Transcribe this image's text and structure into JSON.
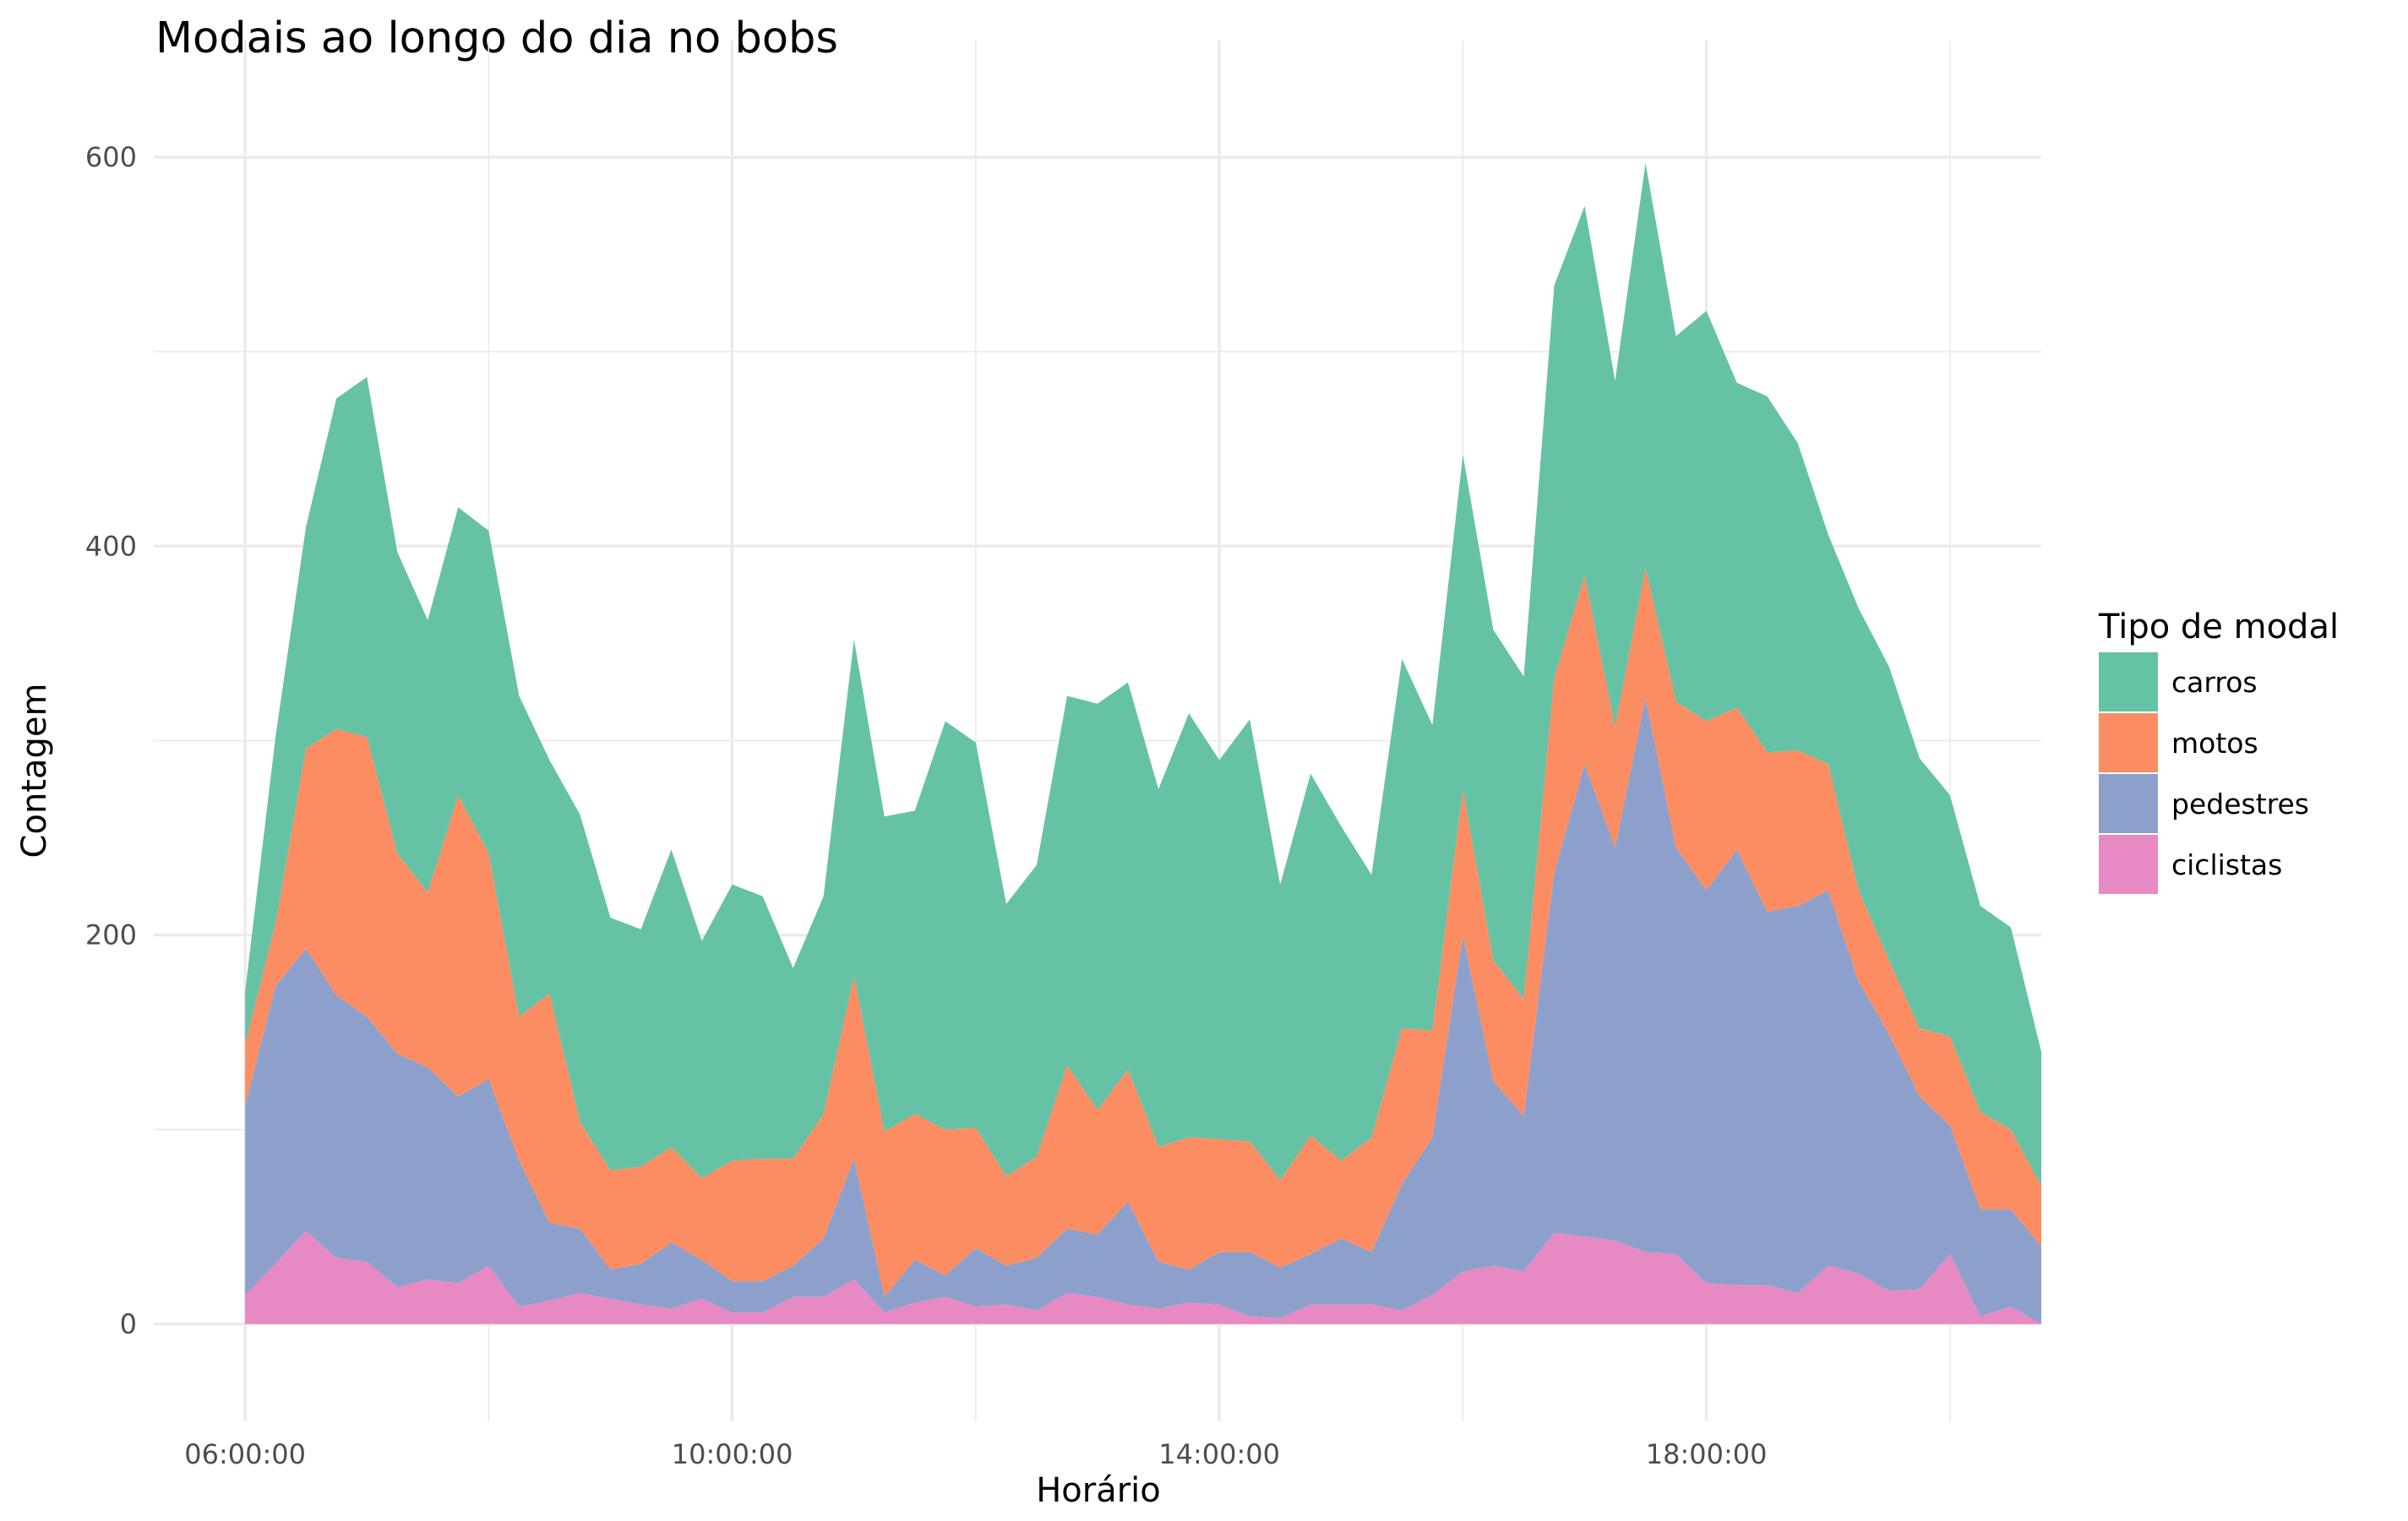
{
  "chart_data": {
    "type": "area",
    "stacked": true,
    "title": "Modais ao longo do dia no bobs",
    "xlabel": "Horário",
    "ylabel": "Contagem",
    "ylim": [
      -50,
      660
    ],
    "yticks": [
      0,
      200,
      400,
      600
    ],
    "xlim": [
      "05:15:00",
      "20:45:00"
    ],
    "xticks": [
      "06:00:00",
      "10:00:00",
      "14:00:00",
      "18:00:00"
    ],
    "grid": true,
    "legend": {
      "title": "Tipo de modal",
      "position": "right"
    },
    "x": [
      "06:00:00",
      "06:15:00",
      "06:30:00",
      "06:45:00",
      "07:00:00",
      "07:15:00",
      "07:30:00",
      "07:45:00",
      "08:00:00",
      "08:15:00",
      "08:30:00",
      "08:45:00",
      "09:00:00",
      "09:15:00",
      "09:30:00",
      "09:45:00",
      "10:00:00",
      "10:15:00",
      "10:30:00",
      "10:45:00",
      "11:00:00",
      "11:15:00",
      "11:30:00",
      "11:45:00",
      "12:00:00",
      "12:15:00",
      "12:30:00",
      "12:45:00",
      "13:00:00",
      "13:15:00",
      "13:30:00",
      "13:45:00",
      "14:00:00",
      "14:15:00",
      "14:30:00",
      "14:45:00",
      "15:00:00",
      "15:15:00",
      "15:30:00",
      "15:45:00",
      "16:00:00",
      "16:15:00",
      "16:30:00",
      "16:45:00",
      "17:00:00",
      "17:15:00",
      "17:30:00",
      "17:45:00",
      "18:00:00",
      "18:15:00",
      "18:30:00",
      "18:45:00",
      "19:00:00",
      "19:15:00",
      "19:30:00",
      "19:45:00",
      "20:00:00",
      "20:15:00",
      "20:30:00",
      "20:45:00"
    ],
    "series": [
      {
        "name": "carros",
        "color": "#66c2a5",
        "values": [
          27,
          96,
          114,
          170,
          185,
          155,
          140,
          148,
          166,
          165,
          120,
          158,
          130,
          122,
          153,
          122,
          142,
          135,
          98,
          112,
          173,
          162,
          156,
          210,
          198,
          140,
          150,
          190,
          209,
          199,
          184,
          218,
          195,
          217,
          152,
          186,
          172,
          135,
          190,
          157,
          172,
          170,
          166,
          202,
          190,
          178,
          208,
          188,
          211,
          167,
          183,
          158,
          118,
          145,
          151,
          139,
          124,
          106,
          104,
          69
        ]
      },
      {
        "name": "motos",
        "color": "#fc8d62",
        "values": [
          32,
          32,
          103,
          137,
          144,
          103,
          90,
          155,
          116,
          74,
          118,
          55,
          51,
          50,
          49,
          42,
          62,
          63,
          55,
          64,
          94,
          85,
          75,
          75,
          62,
          46,
          52,
          84,
          64,
          68,
          59,
          68,
          58,
          57,
          45,
          61,
          40,
          59,
          80,
          55,
          75,
          62,
          60,
          100,
          97,
          62,
          67,
          75,
          87,
          73,
          82,
          80,
          65,
          47,
          38,
          35,
          46,
          50,
          41,
          31
        ]
      },
      {
        "name": "pedestres",
        "color": "#8da0cb",
        "values": [
          97,
          143,
          145,
          135,
          126,
          120,
          109,
          96,
          96,
          75,
          40,
          33,
          15,
          21,
          34,
          20,
          16,
          16,
          16,
          30,
          62,
          8,
          22,
          11,
          30,
          20,
          27,
          33,
          32,
          53,
          24,
          17,
          27,
          33,
          26,
          26,
          34,
          27,
          65,
          81,
          173,
          95,
          80,
          185,
          243,
          202,
          285,
          209,
          202,
          224,
          192,
          199,
          193,
          150,
          132,
          99,
          66,
          55,
          50,
          40
        ]
      },
      {
        "name": "ciclistas",
        "color": "#e78ac3",
        "values": [
          15,
          31,
          48,
          34,
          32,
          19,
          23,
          21,
          30,
          9,
          12,
          16,
          13,
          10,
          8,
          13,
          6,
          6,
          14,
          14,
          23,
          6,
          11,
          14,
          9,
          10,
          7,
          16,
          14,
          10,
          8,
          11,
          10,
          4,
          3,
          10,
          10,
          10,
          7,
          15,
          27,
          30,
          27,
          47,
          45,
          43,
          37,
          36,
          21,
          20,
          20,
          16,
          30,
          26,
          17,
          18,
          36,
          4,
          9,
          0
        ]
      }
    ]
  }
}
